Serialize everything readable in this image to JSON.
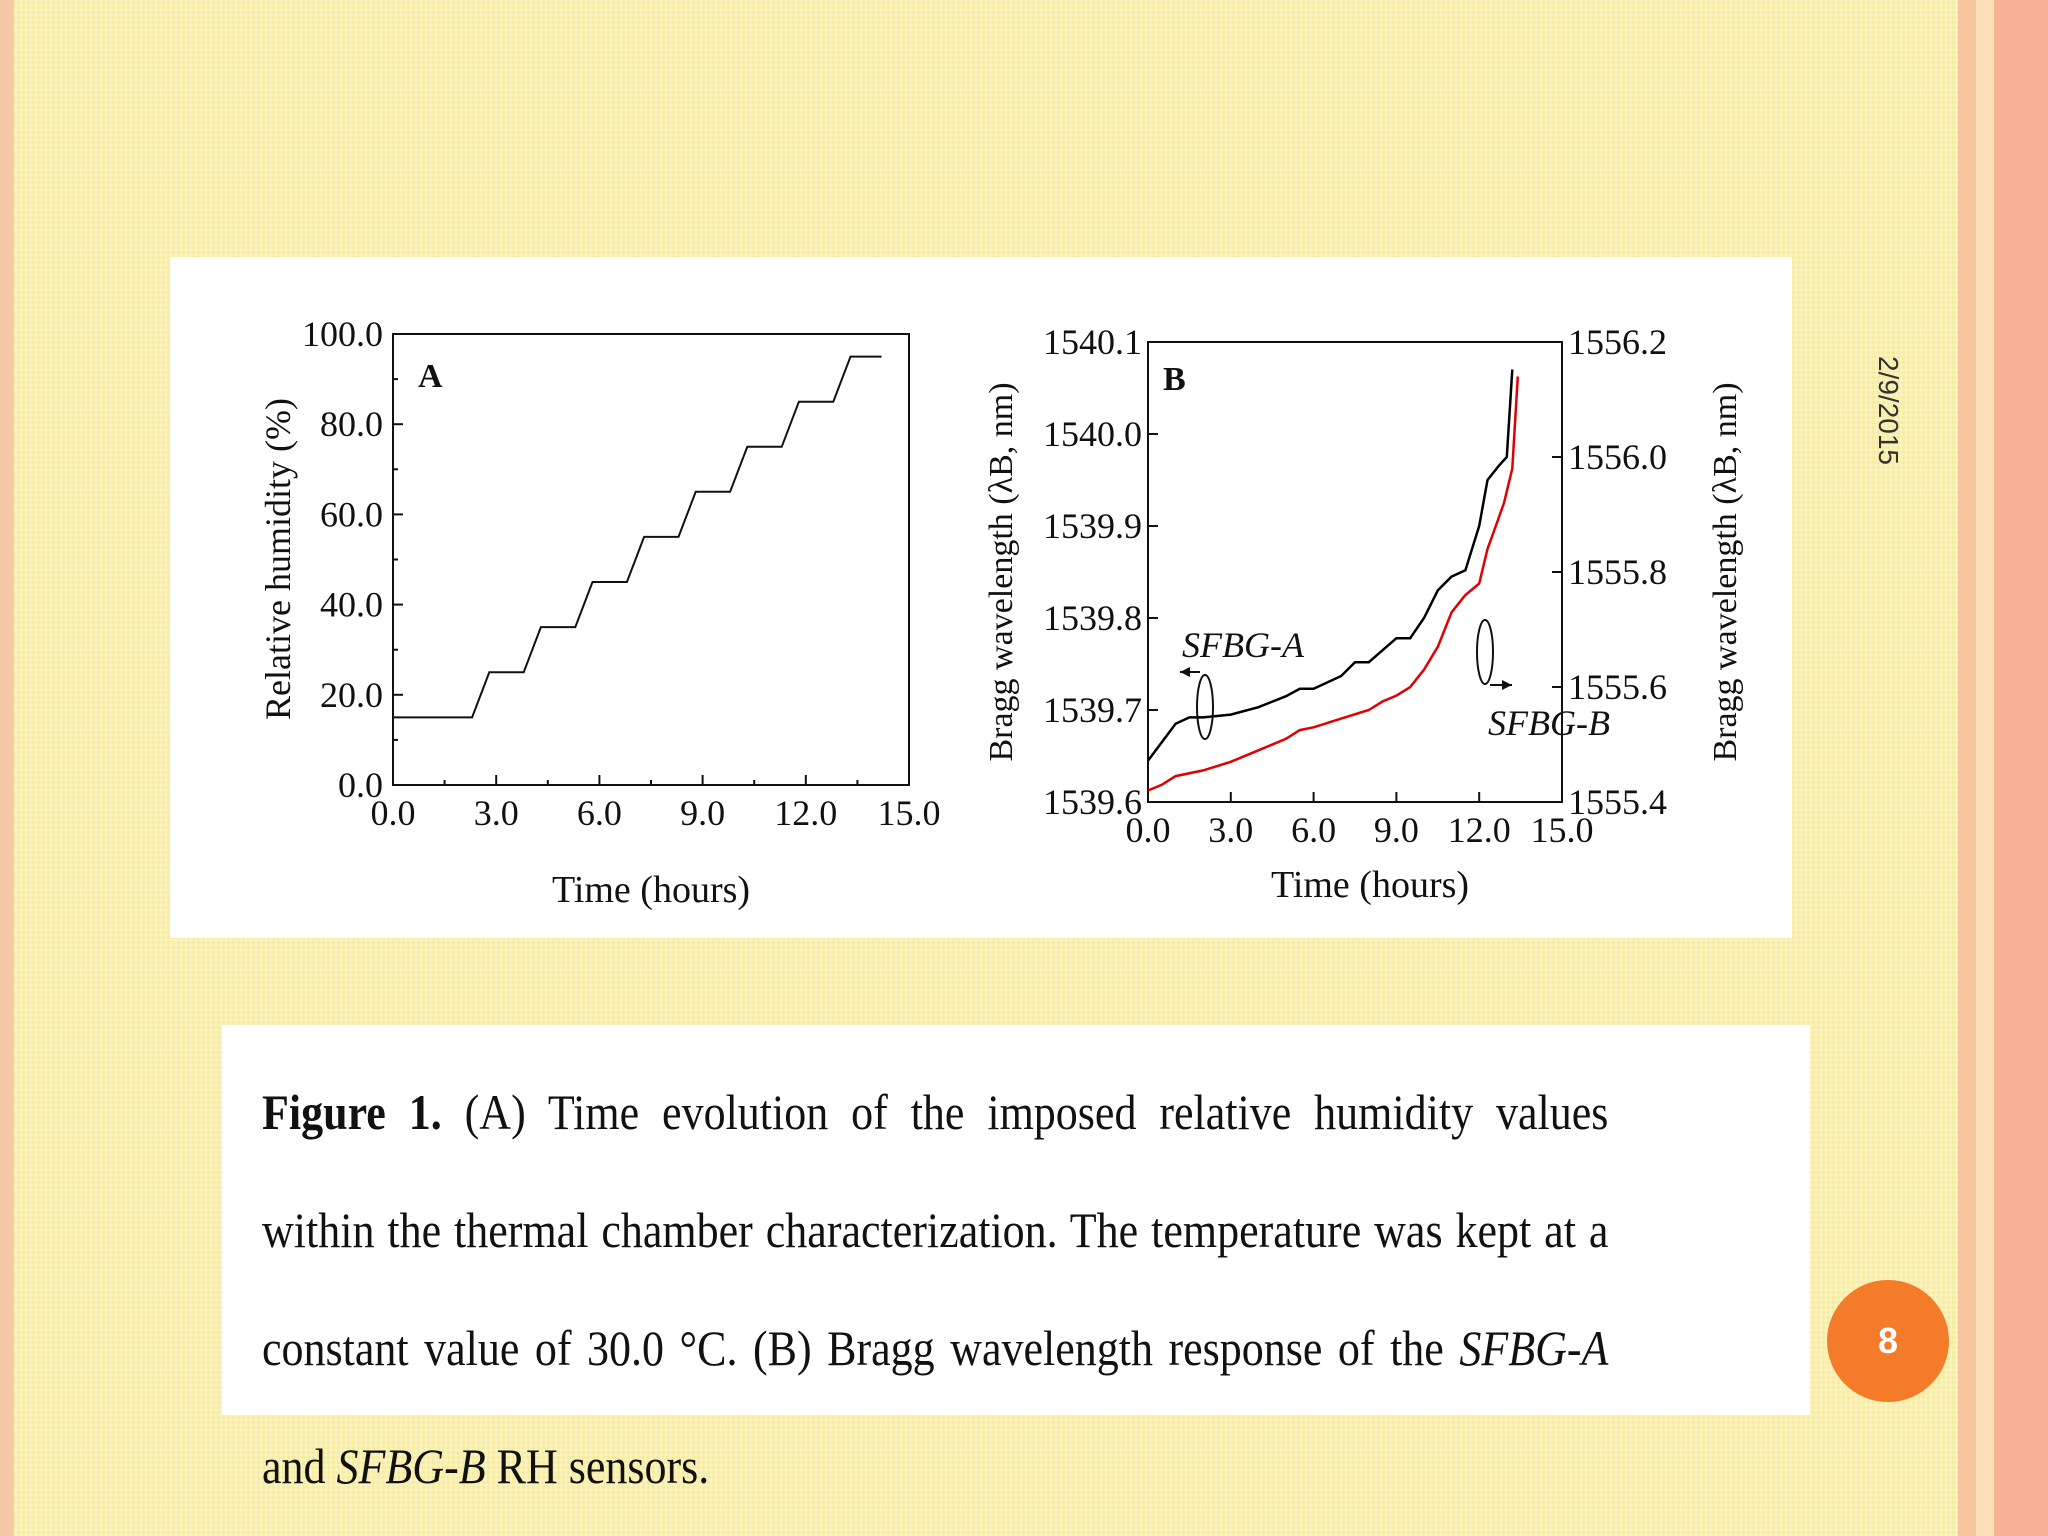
{
  "slide": {
    "date": "2/9/2015",
    "page_number": "8",
    "colors": {
      "background": "#f7ec9f",
      "badge": "#f47b2a"
    }
  },
  "caption": {
    "fig_label": "Figure 1.",
    "text1": " (A) Time evolution of the imposed relative humidity values within the thermal chamber characterization. The temperature was kept at a constant value of 30.0 °C. (B) Bragg wavelength response of the ",
    "sensor_a": "SFBG-A",
    "and": " and ",
    "sensor_b": "SFBG-B",
    "text2": " RH sensors."
  },
  "chart_data": [
    {
      "type": "line",
      "panel_label": "A",
      "xlabel": "Time (hours)",
      "ylabel": "Relative humidity (%)",
      "xlim": [
        0,
        15
      ],
      "ylim": [
        0,
        100
      ],
      "xticks": [
        "0.0",
        "3.0",
        "6.0",
        "9.0",
        "12.0",
        "15.0"
      ],
      "yticks": [
        "0.0",
        "20.0",
        "40.0",
        "60.0",
        "80.0",
        "100.0"
      ],
      "series": [
        {
          "color": "#111111",
          "x": [
            0,
            2.3,
            2.8,
            3.8,
            4.3,
            5.3,
            5.8,
            6.8,
            7.3,
            8.3,
            8.8,
            9.8,
            10.3,
            11.3,
            11.8,
            12.8,
            13.3,
            14.2
          ],
          "y": [
            15,
            15,
            25,
            25,
            35,
            35,
            45,
            45,
            55,
            55,
            65,
            65,
            75,
            75,
            85,
            85,
            95,
            95
          ]
        }
      ]
    },
    {
      "type": "line",
      "panel_label": "B",
      "xlabel": "Time (hours)",
      "ylabel_left": "Bragg wavelength (λB, nm)",
      "ylabel_right": "Bragg wavelength (λB, nm)",
      "xlim": [
        0,
        15
      ],
      "ylim_left": [
        1539.6,
        1540.1
      ],
      "ylim_right": [
        1555.4,
        1556.2
      ],
      "xticks": [
        "0.0",
        "3.0",
        "6.0",
        "9.0",
        "12.0",
        "15.0"
      ],
      "yticks_left": [
        "1539.6",
        "1539.7",
        "1539.8",
        "1539.9",
        "1540.0",
        "1540.1"
      ],
      "yticks_right": [
        "1555.4",
        "1555.6",
        "1555.8",
        "1556.0",
        "1556.2"
      ],
      "annotations": [
        "SFBG-A",
        "SFBG-B"
      ],
      "series": [
        {
          "label": "SFBG-A",
          "color": "#000000",
          "axis": "left",
          "x": [
            0,
            0.5,
            1.0,
            1.5,
            2.0,
            3.0,
            4.0,
            5.0,
            5.5,
            6.0,
            7.0,
            7.5,
            8.0,
            8.5,
            9.0,
            9.5,
            10.0,
            10.5,
            11.0,
            11.5,
            12.0,
            12.3,
            12.7,
            13.0,
            13.2
          ],
          "y": [
            1539.645,
            1539.665,
            1539.685,
            1539.692,
            1539.692,
            1539.695,
            1539.703,
            1539.715,
            1539.723,
            1539.723,
            1539.737,
            1539.752,
            1539.752,
            1539.765,
            1539.778,
            1539.778,
            1539.8,
            1539.83,
            1539.845,
            1539.852,
            1539.9,
            1539.95,
            1539.965,
            1539.975,
            1540.07
          ]
        },
        {
          "label": "SFBG-B",
          "color": "#e00000",
          "axis": "right",
          "x": [
            0,
            0.5,
            1.0,
            2.0,
            3.0,
            4.0,
            5.0,
            5.5,
            6.0,
            7.0,
            8.0,
            8.5,
            9.0,
            9.5,
            10.0,
            10.5,
            11.0,
            11.5,
            12.0,
            12.3,
            12.6,
            12.9,
            13.2,
            13.4
          ],
          "y": [
            1555.42,
            1555.43,
            1555.445,
            1555.455,
            1555.47,
            1555.49,
            1555.51,
            1555.525,
            1555.53,
            1555.545,
            1555.56,
            1555.575,
            1555.585,
            1555.6,
            1555.63,
            1555.67,
            1555.73,
            1555.76,
            1555.78,
            1555.84,
            1555.88,
            1555.92,
            1555.98,
            1556.14
          ]
        }
      ]
    }
  ]
}
